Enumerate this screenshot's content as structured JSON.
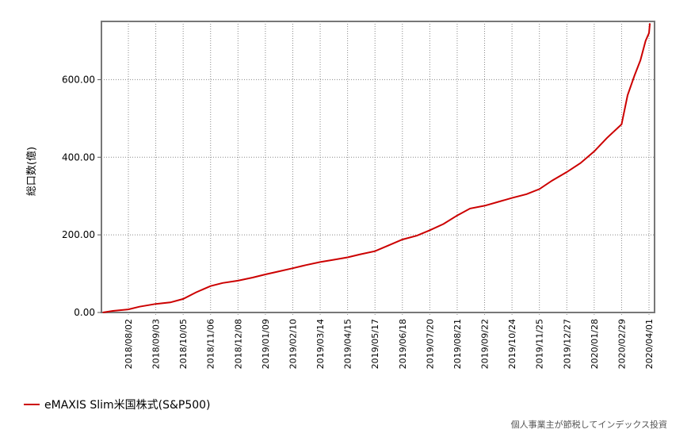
{
  "chart_data": {
    "type": "line",
    "ylabel": "総口数(億)",
    "xlabel": "",
    "ylim": [
      0,
      750
    ],
    "yticks": [
      0,
      200,
      400,
      600
    ],
    "ytick_labels": [
      "0.00",
      "200.00",
      "400.00",
      "600.00"
    ],
    "xtick_labels": [
      "2018/08/02",
      "2018/09/03",
      "2018/10/05",
      "2018/11/06",
      "2018/12/08",
      "2019/01/09",
      "2019/02/10",
      "2019/03/14",
      "2019/04/15",
      "2019/05/17",
      "2019/06/18",
      "2019/07/20",
      "2019/08/21",
      "2019/09/22",
      "2019/10/24",
      "2019/11/25",
      "2019/12/27",
      "2020/01/28",
      "2020/02/29",
      "2020/04/01"
    ],
    "grid": true,
    "legend_position": "bottom-left",
    "series": [
      {
        "name": "eMAXIS Slim米国株式(S&P500)",
        "color": "#cc0000",
        "x": [
          "2018/07/03",
          "2018/07/15",
          "2018/08/02",
          "2018/08/15",
          "2018/09/03",
          "2018/09/20",
          "2018/10/05",
          "2018/10/20",
          "2018/11/06",
          "2018/11/20",
          "2018/12/08",
          "2018/12/25",
          "2019/01/09",
          "2019/01/25",
          "2019/02/10",
          "2019/02/25",
          "2019/03/14",
          "2019/03/30",
          "2019/04/15",
          "2019/04/30",
          "2019/05/17",
          "2019/06/01",
          "2019/06/18",
          "2019/07/05",
          "2019/07/20",
          "2019/08/05",
          "2019/08/21",
          "2019/09/05",
          "2019/09/22",
          "2019/10/08",
          "2019/10/24",
          "2019/11/10",
          "2019/11/25",
          "2019/12/10",
          "2019/12/27",
          "2020/01/12",
          "2020/01/28",
          "2020/02/12",
          "2020/02/29",
          "2020/03/07",
          "2020/03/15",
          "2020/03/22",
          "2020/03/28",
          "2020/04/01",
          "2020/04/02"
        ],
        "values": [
          0,
          4,
          8,
          15,
          22,
          26,
          35,
          52,
          68,
          76,
          82,
          90,
          98,
          106,
          114,
          122,
          130,
          136,
          142,
          150,
          158,
          172,
          188,
          198,
          212,
          228,
          250,
          268,
          275,
          285,
          295,
          305,
          318,
          340,
          362,
          385,
          415,
          450,
          485,
          560,
          610,
          650,
          700,
          720,
          745
        ]
      }
    ]
  },
  "legend": {
    "label": "eMAXIS Slim米国株式(S&P500)"
  },
  "watermark": "個人事業主が節税してインデックス投資"
}
